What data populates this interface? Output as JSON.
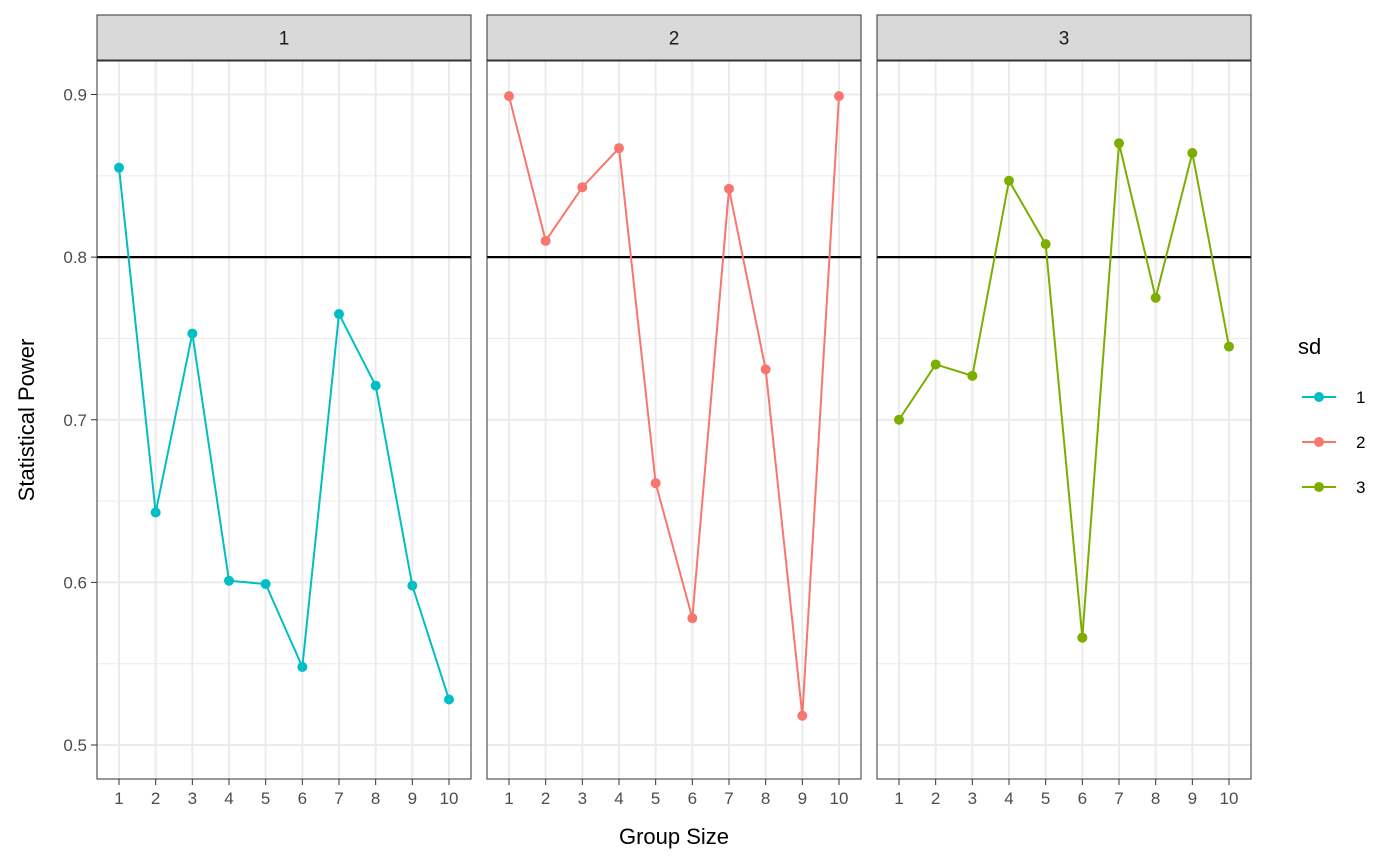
{
  "chart_data": {
    "type": "line",
    "xlabel": "Group Size",
    "ylabel": "Statistical Power",
    "x": [
      1,
      2,
      3,
      4,
      5,
      6,
      7,
      8,
      9,
      10
    ],
    "ylim": [
      0.5,
      0.92
    ],
    "yticks": [
      "0.5",
      "0.6",
      "0.7",
      "0.8",
      "0.9"
    ],
    "reference_line": 0.8,
    "grid": true,
    "legend": {
      "title": "sd",
      "position": "right"
    },
    "panels": [
      {
        "strip": "1",
        "series": "1",
        "color": "#00BFC4",
        "values": [
          0.855,
          0.643,
          0.753,
          0.601,
          0.599,
          0.548,
          0.765,
          0.721,
          0.598,
          0.528
        ]
      },
      {
        "strip": "2",
        "series": "2",
        "color": "#F8766D",
        "values": [
          0.899,
          0.81,
          0.843,
          0.867,
          0.661,
          0.578,
          0.842,
          0.731,
          0.518,
          0.899
        ]
      },
      {
        "strip": "3",
        "series": "3",
        "color": "#7CAE00",
        "values": [
          0.7,
          0.734,
          0.727,
          0.847,
          0.808,
          0.566,
          0.87,
          0.775,
          0.864,
          0.745
        ]
      }
    ],
    "legend_entries": [
      {
        "label": "1",
        "color": "#00BFC4"
      },
      {
        "label": "2",
        "color": "#F8766D"
      },
      {
        "label": "3",
        "color": "#7CAE00"
      }
    ]
  }
}
